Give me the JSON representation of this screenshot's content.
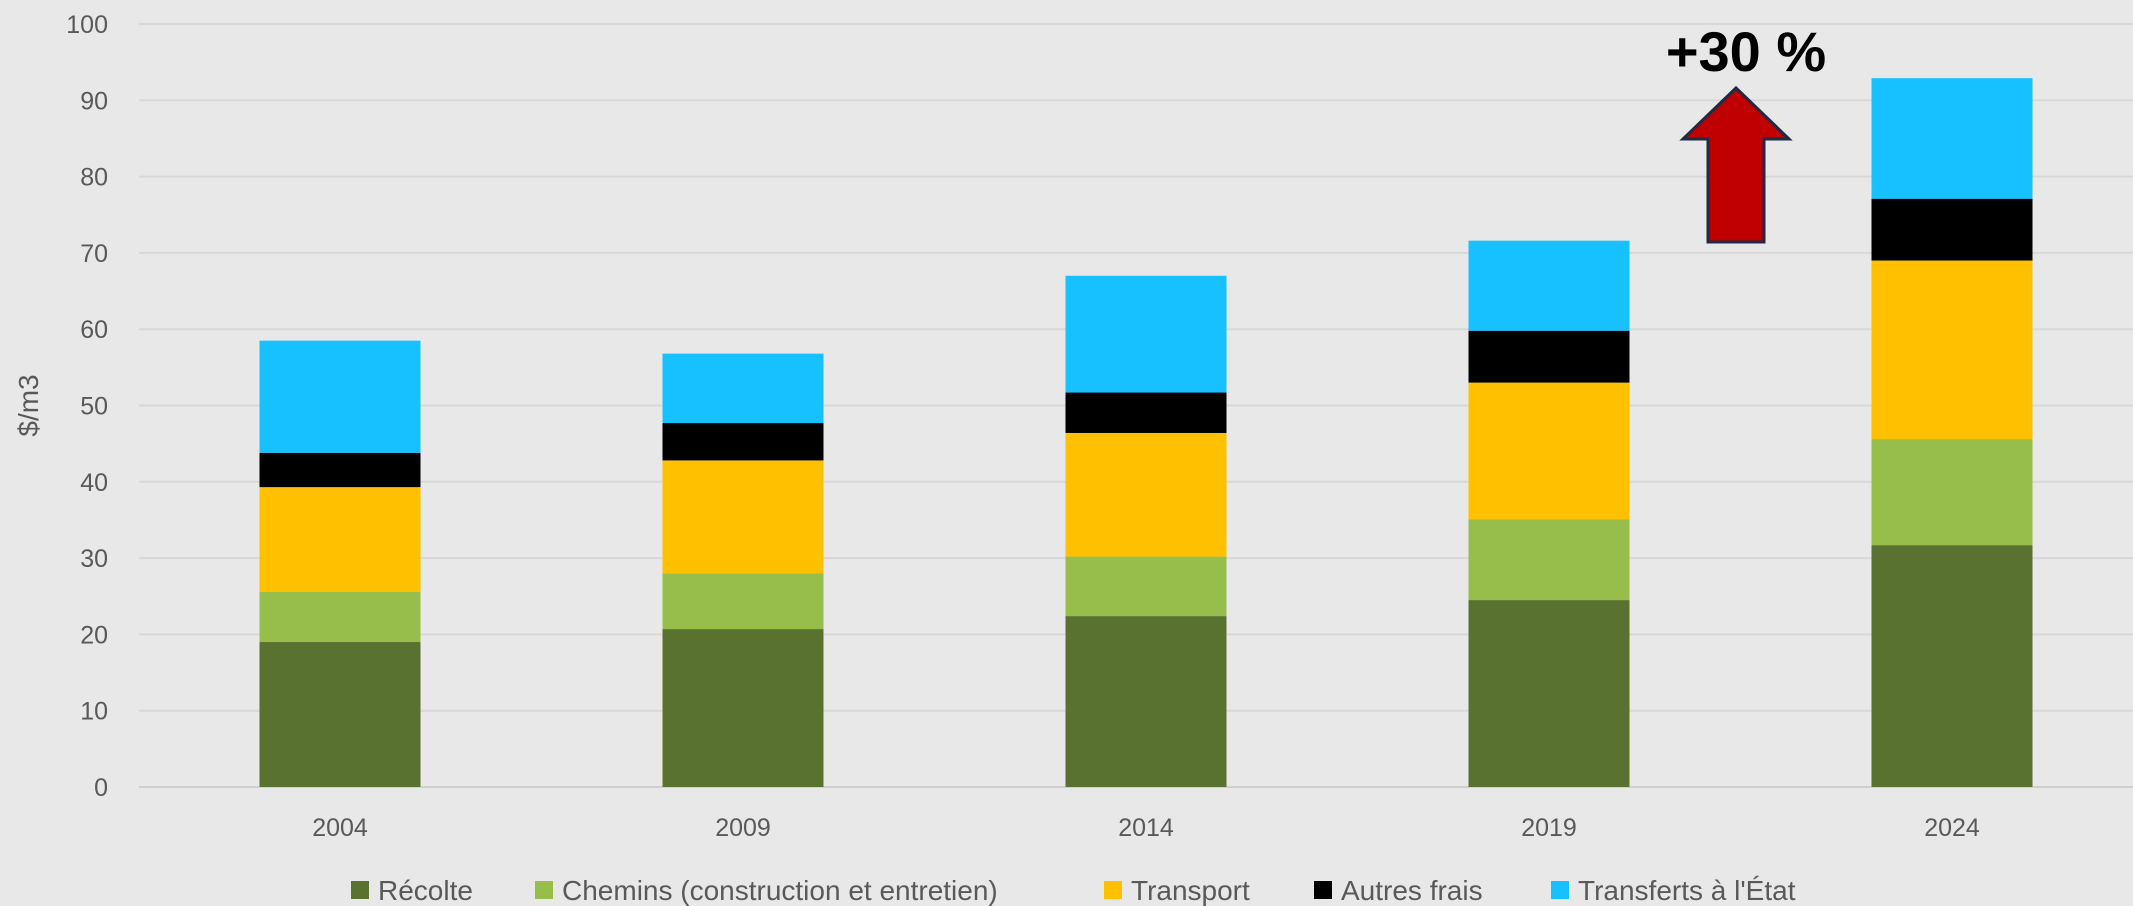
{
  "chart_data": {
    "type": "bar",
    "stacked": true,
    "categories": [
      "2004",
      "2009",
      "2014",
      "2019",
      "2024"
    ],
    "series": [
      {
        "name": "Récolte",
        "color": "#5a7230",
        "values": [
          19,
          20.7,
          22.4,
          24.5,
          31.7
        ]
      },
      {
        "name": "Chemins (construction et entretien)",
        "color": "#97be4a",
        "values": [
          6.6,
          7.3,
          7.8,
          10.6,
          13.9
        ]
      },
      {
        "name": "Transport",
        "color": "#ffc000",
        "values": [
          13.7,
          14.8,
          16.2,
          17.9,
          23.4
        ]
      },
      {
        "name": "Autres frais",
        "color": "#000000",
        "values": [
          4.5,
          4.9,
          5.3,
          6.8,
          8.1
        ]
      },
      {
        "name": "Transferts à l'État",
        "color": "#17c0ff",
        "values": [
          14.7,
          9.1,
          15.3,
          11.8,
          15.8
        ]
      }
    ],
    "ylabel": "$/m3",
    "xlabel": "",
    "ylim": [
      0,
      100
    ],
    "yticks": [
      0,
      10,
      20,
      30,
      40,
      50,
      60,
      70,
      80,
      90,
      100
    ],
    "grid": true,
    "legend_position": "bottom",
    "annotation": {
      "text": "+30 %",
      "arrow_color": "#c00000",
      "arrow_direction": "up"
    }
  }
}
